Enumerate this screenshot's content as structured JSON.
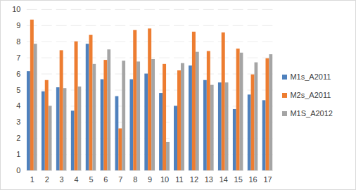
{
  "chart_data": {
    "type": "bar",
    "categories": [
      1,
      2,
      3,
      4,
      5,
      6,
      7,
      8,
      9,
      10,
      11,
      12,
      13,
      14,
      15,
      16,
      17
    ],
    "series": [
      {
        "name": "M1s_A2011",
        "color": "#4f81bd",
        "values": [
          6.15,
          4.9,
          5.15,
          3.7,
          7.85,
          5.65,
          4.6,
          5.65,
          6.0,
          4.8,
          4.0,
          6.5,
          5.6,
          5.45,
          3.8,
          4.7,
          4.35
        ]
      },
      {
        "name": "M2s_A2011",
        "color": "#ed7d31",
        "values": [
          9.35,
          5.6,
          7.45,
          8.0,
          8.4,
          6.85,
          2.6,
          8.7,
          8.8,
          6.6,
          6.2,
          8.6,
          7.4,
          8.55,
          7.55,
          5.95,
          6.95
        ]
      },
      {
        "name": "M1S_A2012",
        "color": "#a5a5a5",
        "values": [
          7.85,
          4.0,
          5.1,
          5.2,
          6.6,
          7.5,
          6.8,
          6.75,
          6.9,
          1.75,
          6.65,
          7.35,
          5.3,
          5.45,
          7.3,
          6.7,
          7.2
        ]
      }
    ],
    "ylim": [
      0,
      10
    ],
    "yticks": [
      0,
      1,
      2,
      3,
      4,
      5,
      6,
      7,
      8,
      9,
      10
    ],
    "grid": true,
    "legend": "right"
  }
}
